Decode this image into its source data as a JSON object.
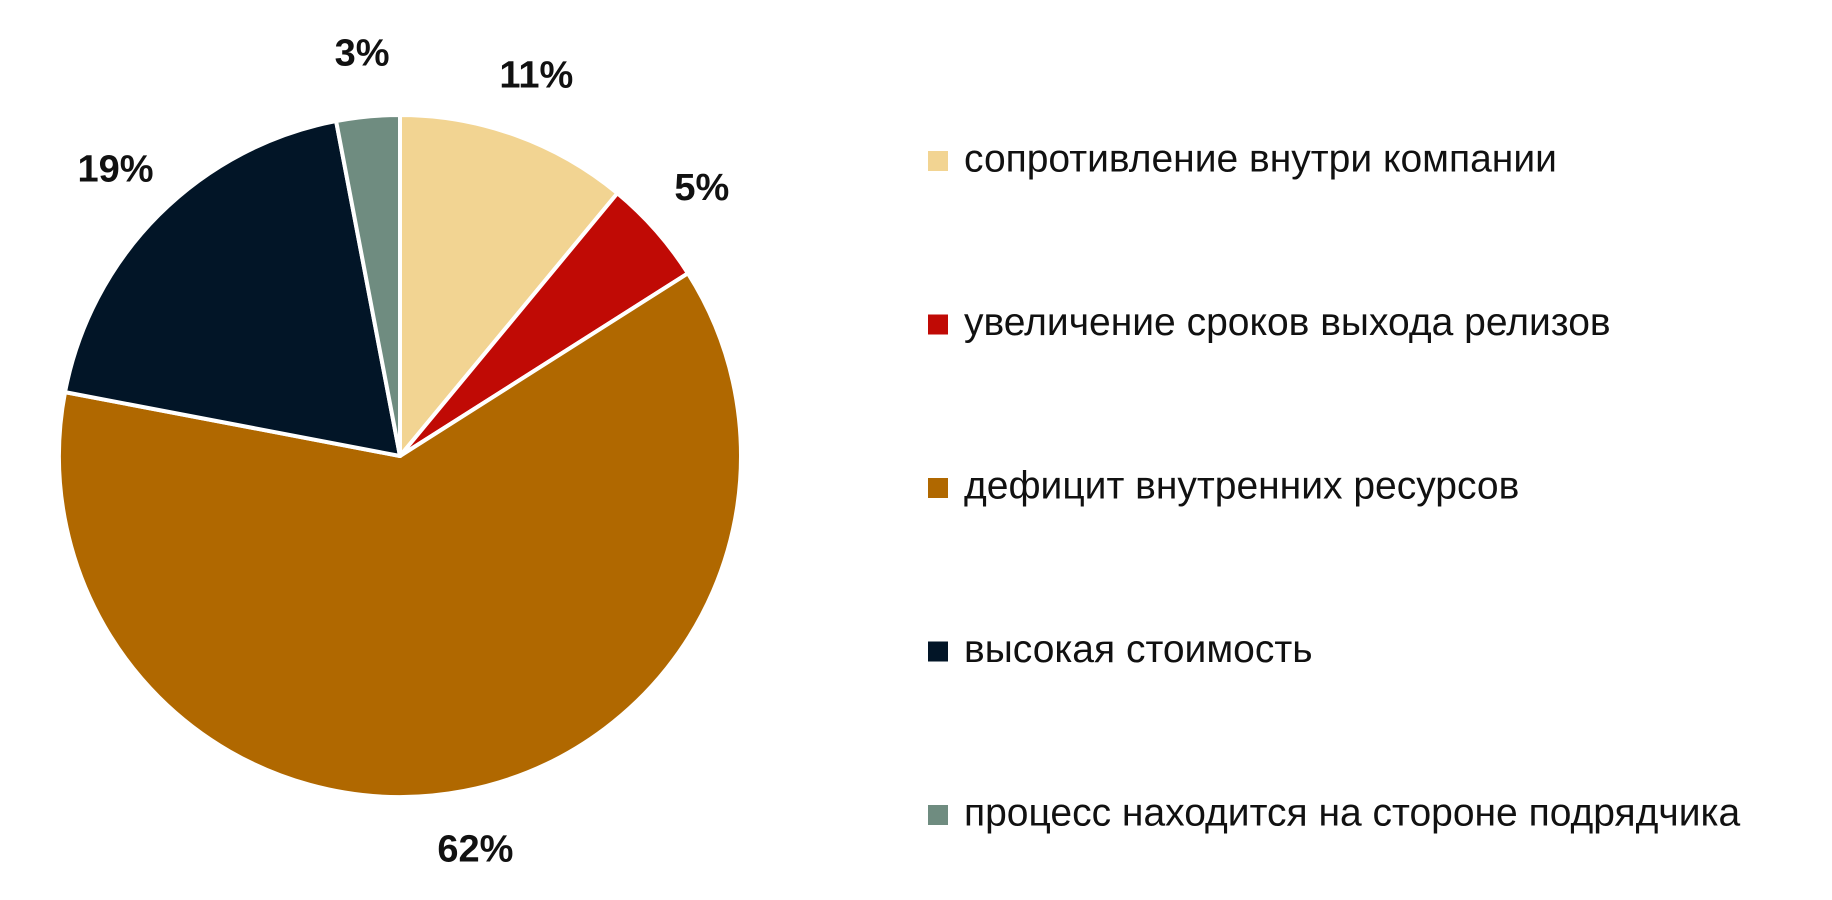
{
  "chart_data": {
    "type": "pie",
    "categories": [
      "сопротивление внутри компании",
      "увеличение сроков выхода релизов",
      "дефицит внутренних ресурсов",
      "высокая стоимость",
      "процесс находится на стороне подрядчика"
    ],
    "values": [
      11,
      5,
      62,
      19,
      3
    ],
    "value_labels": [
      "11%",
      "5%",
      "62%",
      "19%",
      "3%"
    ],
    "colors": [
      "#f2d492",
      "#c00a05",
      "#b06800",
      "#021527",
      "#6f8c80"
    ],
    "legend": "right"
  }
}
